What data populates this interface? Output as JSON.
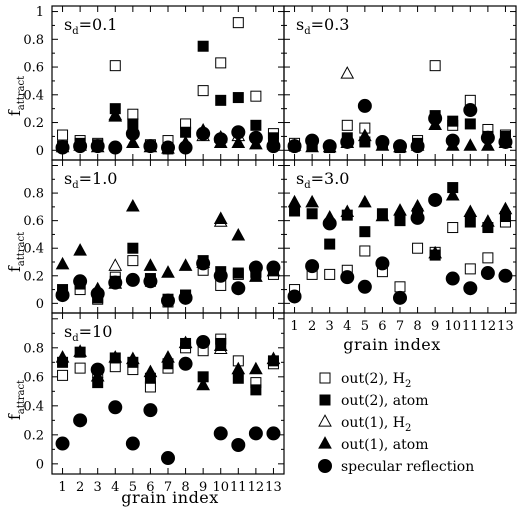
{
  "figure": {
    "x_label": "grain index",
    "y_label_main": "f",
    "y_label_sub": "attract",
    "panel_label_main": "s",
    "panel_label_sub": "d"
  },
  "chart_data": [
    {
      "type": "scatter",
      "panel_label_value": "=0.1",
      "x_ticks": [
        "1",
        "2",
        "3",
        "4",
        "5",
        "6",
        "7",
        "8",
        "9",
        "10",
        "11",
        "12",
        "13"
      ],
      "y_ticks": [
        "0",
        "0.2",
        "0.4",
        "0.6",
        "0.8",
        "1"
      ],
      "xlim": [
        0.4,
        13.6
      ],
      "ylim": [
        -0.07,
        1.04
      ],
      "series": [
        {
          "name": "out(2), H",
          "marker": "square-open",
          "x": [
            1,
            2,
            3,
            4,
            5,
            6,
            7,
            8,
            9,
            10,
            11,
            12,
            13
          ],
          "y": [
            0.11,
            0.07,
            0.05,
            0.61,
            0.26,
            0.04,
            0.07,
            0.19,
            0.43,
            0.63,
            0.92,
            0.39,
            0.12
          ]
        },
        {
          "name": "out(2), atom",
          "marker": "square-filled",
          "x": [
            1,
            2,
            3,
            4,
            5,
            6,
            7,
            8,
            9,
            10,
            11,
            12,
            13
          ],
          "y": [
            0.03,
            0.05,
            0.04,
            0.3,
            0.19,
            0.03,
            0.01,
            0.13,
            0.75,
            0.36,
            0.38,
            0.18,
            0.09
          ]
        },
        {
          "name": "out(1), H",
          "marker": "triangle-open",
          "x": [
            4,
            9,
            10,
            11
          ],
          "y": [
            0.25,
            0.1,
            0.09,
            0.1
          ]
        },
        {
          "name": "out(1), atom",
          "marker": "triangle-filled",
          "x": [
            1,
            2,
            3,
            4,
            5,
            6,
            7,
            8,
            9,
            10,
            11,
            12,
            13
          ],
          "y": [
            0.02,
            0.03,
            0.02,
            0.24,
            0.05,
            0.02,
            0.01,
            0.05,
            0.14,
            0.05,
            0.05,
            0.04,
            0.04
          ]
        },
        {
          "name": "specular reflection",
          "marker": "circle-filled",
          "x": [
            1,
            2,
            3,
            4,
            5,
            6,
            7,
            8,
            9,
            10,
            11,
            12,
            13
          ],
          "y": [
            0.02,
            0.03,
            0.03,
            0.02,
            0.12,
            0.03,
            0.02,
            0.02,
            0.12,
            0.08,
            0.13,
            0.09,
            0.03
          ]
        }
      ]
    },
    {
      "type": "scatter",
      "panel_label_value": "=0.3",
      "x_ticks": [
        "1",
        "2",
        "3",
        "4",
        "5",
        "6",
        "7",
        "8",
        "9",
        "10",
        "11",
        "12",
        "13"
      ],
      "y_ticks": [],
      "xlim": [
        0.4,
        13.6
      ],
      "ylim": [
        -0.07,
        1.04
      ],
      "series": [
        {
          "name": "out(2), H",
          "marker": "square-open",
          "x": [
            1,
            2,
            3,
            4,
            5,
            6,
            7,
            8,
            9,
            10,
            11,
            12,
            13
          ],
          "y": [
            0.05,
            0.04,
            0.02,
            0.18,
            0.16,
            0.04,
            0.02,
            0.07,
            0.61,
            0.18,
            0.36,
            0.15,
            0.11
          ]
        },
        {
          "name": "out(2), atom",
          "marker": "square-filled",
          "x": [
            1,
            2,
            3,
            4,
            5,
            6,
            7,
            8,
            9,
            10,
            11,
            12,
            13
          ],
          "y": [
            0.03,
            0.04,
            0.02,
            0.09,
            0.06,
            0.05,
            0.02,
            0.05,
            0.25,
            0.21,
            0.19,
            0.1,
            0.1
          ]
        },
        {
          "name": "out(1), H",
          "marker": "triangle-open",
          "x": [
            4
          ],
          "y": [
            0.55
          ]
        },
        {
          "name": "out(1), atom",
          "marker": "triangle-filled",
          "x": [
            1,
            2,
            3,
            4,
            5,
            6,
            7,
            8,
            9,
            10,
            11,
            12,
            13
          ],
          "y": [
            0.03,
            0.02,
            0.02,
            0.05,
            0.1,
            0.03,
            0.02,
            0.03,
            0.18,
            0.03,
            0.03,
            0.03,
            0.05
          ]
        },
        {
          "name": "specular reflection",
          "marker": "circle-filled",
          "x": [
            1,
            2,
            3,
            4,
            5,
            6,
            7,
            8,
            9,
            10,
            11,
            12,
            13
          ],
          "y": [
            0.03,
            0.07,
            0.03,
            0.06,
            0.32,
            0.06,
            0.03,
            0.03,
            0.23,
            0.07,
            0.29,
            0.09,
            0.06
          ]
        }
      ]
    },
    {
      "type": "scatter",
      "panel_label_value": "=1.0",
      "x_ticks": [
        "1",
        "2",
        "3",
        "4",
        "5",
        "6",
        "7",
        "8",
        "9",
        "10",
        "11",
        "12",
        "13"
      ],
      "y_ticks": [
        "0",
        "0.2",
        "0.4",
        "0.6",
        "0.8"
      ],
      "xlim": [
        0.4,
        13.6
      ],
      "ylim": [
        -0.07,
        1.04
      ],
      "series": [
        {
          "name": "out(2), H",
          "marker": "square-open",
          "x": [
            1,
            2,
            3,
            4,
            5,
            6,
            7,
            8,
            9,
            10,
            11,
            12,
            13
          ],
          "y": [
            0.07,
            0.1,
            0.03,
            0.19,
            0.31,
            0.16,
            0.01,
            0.06,
            0.24,
            0.13,
            0.21,
            0.23,
            0.21
          ]
        },
        {
          "name": "out(2), atom",
          "marker": "square-filled",
          "x": [
            1,
            2,
            3,
            4,
            5,
            6,
            7,
            8,
            9,
            10,
            11,
            12,
            13
          ],
          "y": [
            0.1,
            0.14,
            0.04,
            0.16,
            0.4,
            0.18,
            0.03,
            0.06,
            0.31,
            0.23,
            0.22,
            0.22,
            0.24
          ]
        },
        {
          "name": "out(1), H",
          "marker": "triangle-open",
          "x": [
            4,
            10
          ],
          "y": [
            0.27,
            0.59
          ]
        },
        {
          "name": "out(1), atom",
          "marker": "triangle-filled",
          "x": [
            1,
            2,
            3,
            4,
            5,
            6,
            7,
            8,
            9,
            10,
            11,
            12,
            13
          ],
          "y": [
            0.28,
            0.38,
            0.1,
            0.14,
            0.7,
            0.27,
            0.22,
            0.27,
            0.29,
            0.61,
            0.49,
            0.19,
            0.23
          ]
        },
        {
          "name": "specular reflection",
          "marker": "circle-filled",
          "x": [
            1,
            2,
            3,
            4,
            5,
            6,
            7,
            8,
            9,
            10,
            11,
            12,
            13
          ],
          "y": [
            0.06,
            0.16,
            0.07,
            0.15,
            0.17,
            0.16,
            0.02,
            0.04,
            0.29,
            0.2,
            0.11,
            0.26,
            0.26
          ]
        }
      ]
    },
    {
      "type": "scatter",
      "panel_label_value": "=3.0",
      "x_ticks": [
        "1",
        "2",
        "3",
        "4",
        "5",
        "6",
        "7",
        "8",
        "9",
        "10",
        "11",
        "12",
        "13"
      ],
      "y_ticks": [],
      "xlim": [
        0.4,
        13.6
      ],
      "ylim": [
        -0.07,
        1.04
      ],
      "series": [
        {
          "name": "out(2), H",
          "marker": "square-open",
          "x": [
            1,
            2,
            3,
            4,
            5,
            6,
            7,
            8,
            9,
            10,
            11,
            12,
            13
          ],
          "y": [
            0.1,
            0.21,
            0.21,
            0.24,
            0.38,
            0.23,
            0.12,
            0.4,
            0.37,
            0.55,
            0.25,
            0.33,
            0.59
          ]
        },
        {
          "name": "out(2), atom",
          "marker": "square-filled",
          "x": [
            1,
            2,
            3,
            4,
            5,
            6,
            7,
            8,
            9,
            10,
            11,
            12,
            13
          ],
          "y": [
            0.67,
            0.65,
            0.43,
            0.64,
            0.52,
            0.65,
            0.6,
            0.65,
            0.35,
            0.84,
            0.59,
            0.55,
            0.63
          ]
        },
        {
          "name": "out(1), H",
          "marker": "triangle-open",
          "x": [],
          "y": []
        },
        {
          "name": "out(1), atom",
          "marker": "triangle-filled",
          "x": [
            1,
            2,
            3,
            4,
            5,
            6,
            7,
            8,
            9,
            10,
            11,
            12,
            13
          ],
          "y": [
            0.73,
            0.73,
            0.62,
            0.66,
            0.73,
            0.63,
            0.67,
            0.7,
            0.36,
            0.78,
            0.66,
            0.59,
            0.68
          ]
        },
        {
          "name": "specular reflection",
          "marker": "circle-filled",
          "x": [
            1,
            2,
            3,
            4,
            5,
            6,
            7,
            8,
            9,
            10,
            11,
            12,
            13
          ],
          "y": [
            0.05,
            0.27,
            0.58,
            0.19,
            0.12,
            0.29,
            0.04,
            0.62,
            0.75,
            0.18,
            0.11,
            0.22,
            0.2
          ]
        }
      ]
    },
    {
      "type": "scatter",
      "panel_label_value": "=10",
      "x_ticks": [
        "1",
        "2",
        "3",
        "4",
        "5",
        "6",
        "7",
        "8",
        "9",
        "10",
        "11",
        "12",
        "13"
      ],
      "y_ticks": [
        "0",
        "0.2",
        "0.4",
        "0.6",
        "0.8"
      ],
      "xlim": [
        0.4,
        13.6
      ],
      "ylim": [
        -0.07,
        1.04
      ],
      "series": [
        {
          "name": "out(2), H",
          "marker": "square-open",
          "x": [
            1,
            2,
            3,
            4,
            5,
            6,
            7,
            8,
            9,
            10,
            11,
            12,
            13
          ],
          "y": [
            0.61,
            0.66,
            0.63,
            0.67,
            0.65,
            0.53,
            0.66,
            0.8,
            0.78,
            0.86,
            0.71,
            0.56,
            0.69
          ]
        },
        {
          "name": "out(2), atom",
          "marker": "square-filled",
          "x": [
            1,
            2,
            3,
            4,
            5,
            6,
            7,
            8,
            9,
            10,
            11,
            12,
            13
          ],
          "y": [
            0.7,
            0.77,
            0.56,
            0.73,
            0.7,
            0.59,
            0.69,
            0.83,
            0.6,
            0.83,
            0.59,
            0.51,
            0.71
          ]
        },
        {
          "name": "out(1), H",
          "marker": "triangle-open",
          "x": [
            10
          ],
          "y": [
            0.79
          ]
        },
        {
          "name": "out(1), atom",
          "marker": "triangle-filled",
          "x": [
            1,
            2,
            3,
            4,
            5,
            6,
            7,
            8,
            9,
            10,
            11,
            12,
            13
          ],
          "y": [
            0.73,
            0.77,
            0.6,
            0.73,
            0.72,
            0.63,
            0.73,
            0.83,
            0.54,
            0.81,
            0.65,
            0.65,
            0.72
          ]
        },
        {
          "name": "specular reflection",
          "marker": "circle-filled",
          "x": [
            1,
            2,
            3,
            4,
            5,
            6,
            7,
            8,
            9,
            10,
            11,
            12,
            13
          ],
          "y": [
            0.14,
            0.3,
            0.65,
            0.39,
            0.14,
            0.37,
            0.04,
            0.69,
            0.84,
            0.21,
            0.13,
            0.21,
            0.21
          ]
        }
      ]
    }
  ],
  "legend": {
    "placement": "bottom-right",
    "items": [
      {
        "marker": "square-open",
        "label": "out(2), H",
        "sub": "2"
      },
      {
        "marker": "square-filled",
        "label": "out(2), atom",
        "sub": ""
      },
      {
        "marker": "triangle-open",
        "label": "out(1), H",
        "sub": "2"
      },
      {
        "marker": "triangle-filled",
        "label": "out(1), atom",
        "sub": ""
      },
      {
        "marker": "circle-filled",
        "label": "specular reflection",
        "sub": ""
      }
    ]
  }
}
